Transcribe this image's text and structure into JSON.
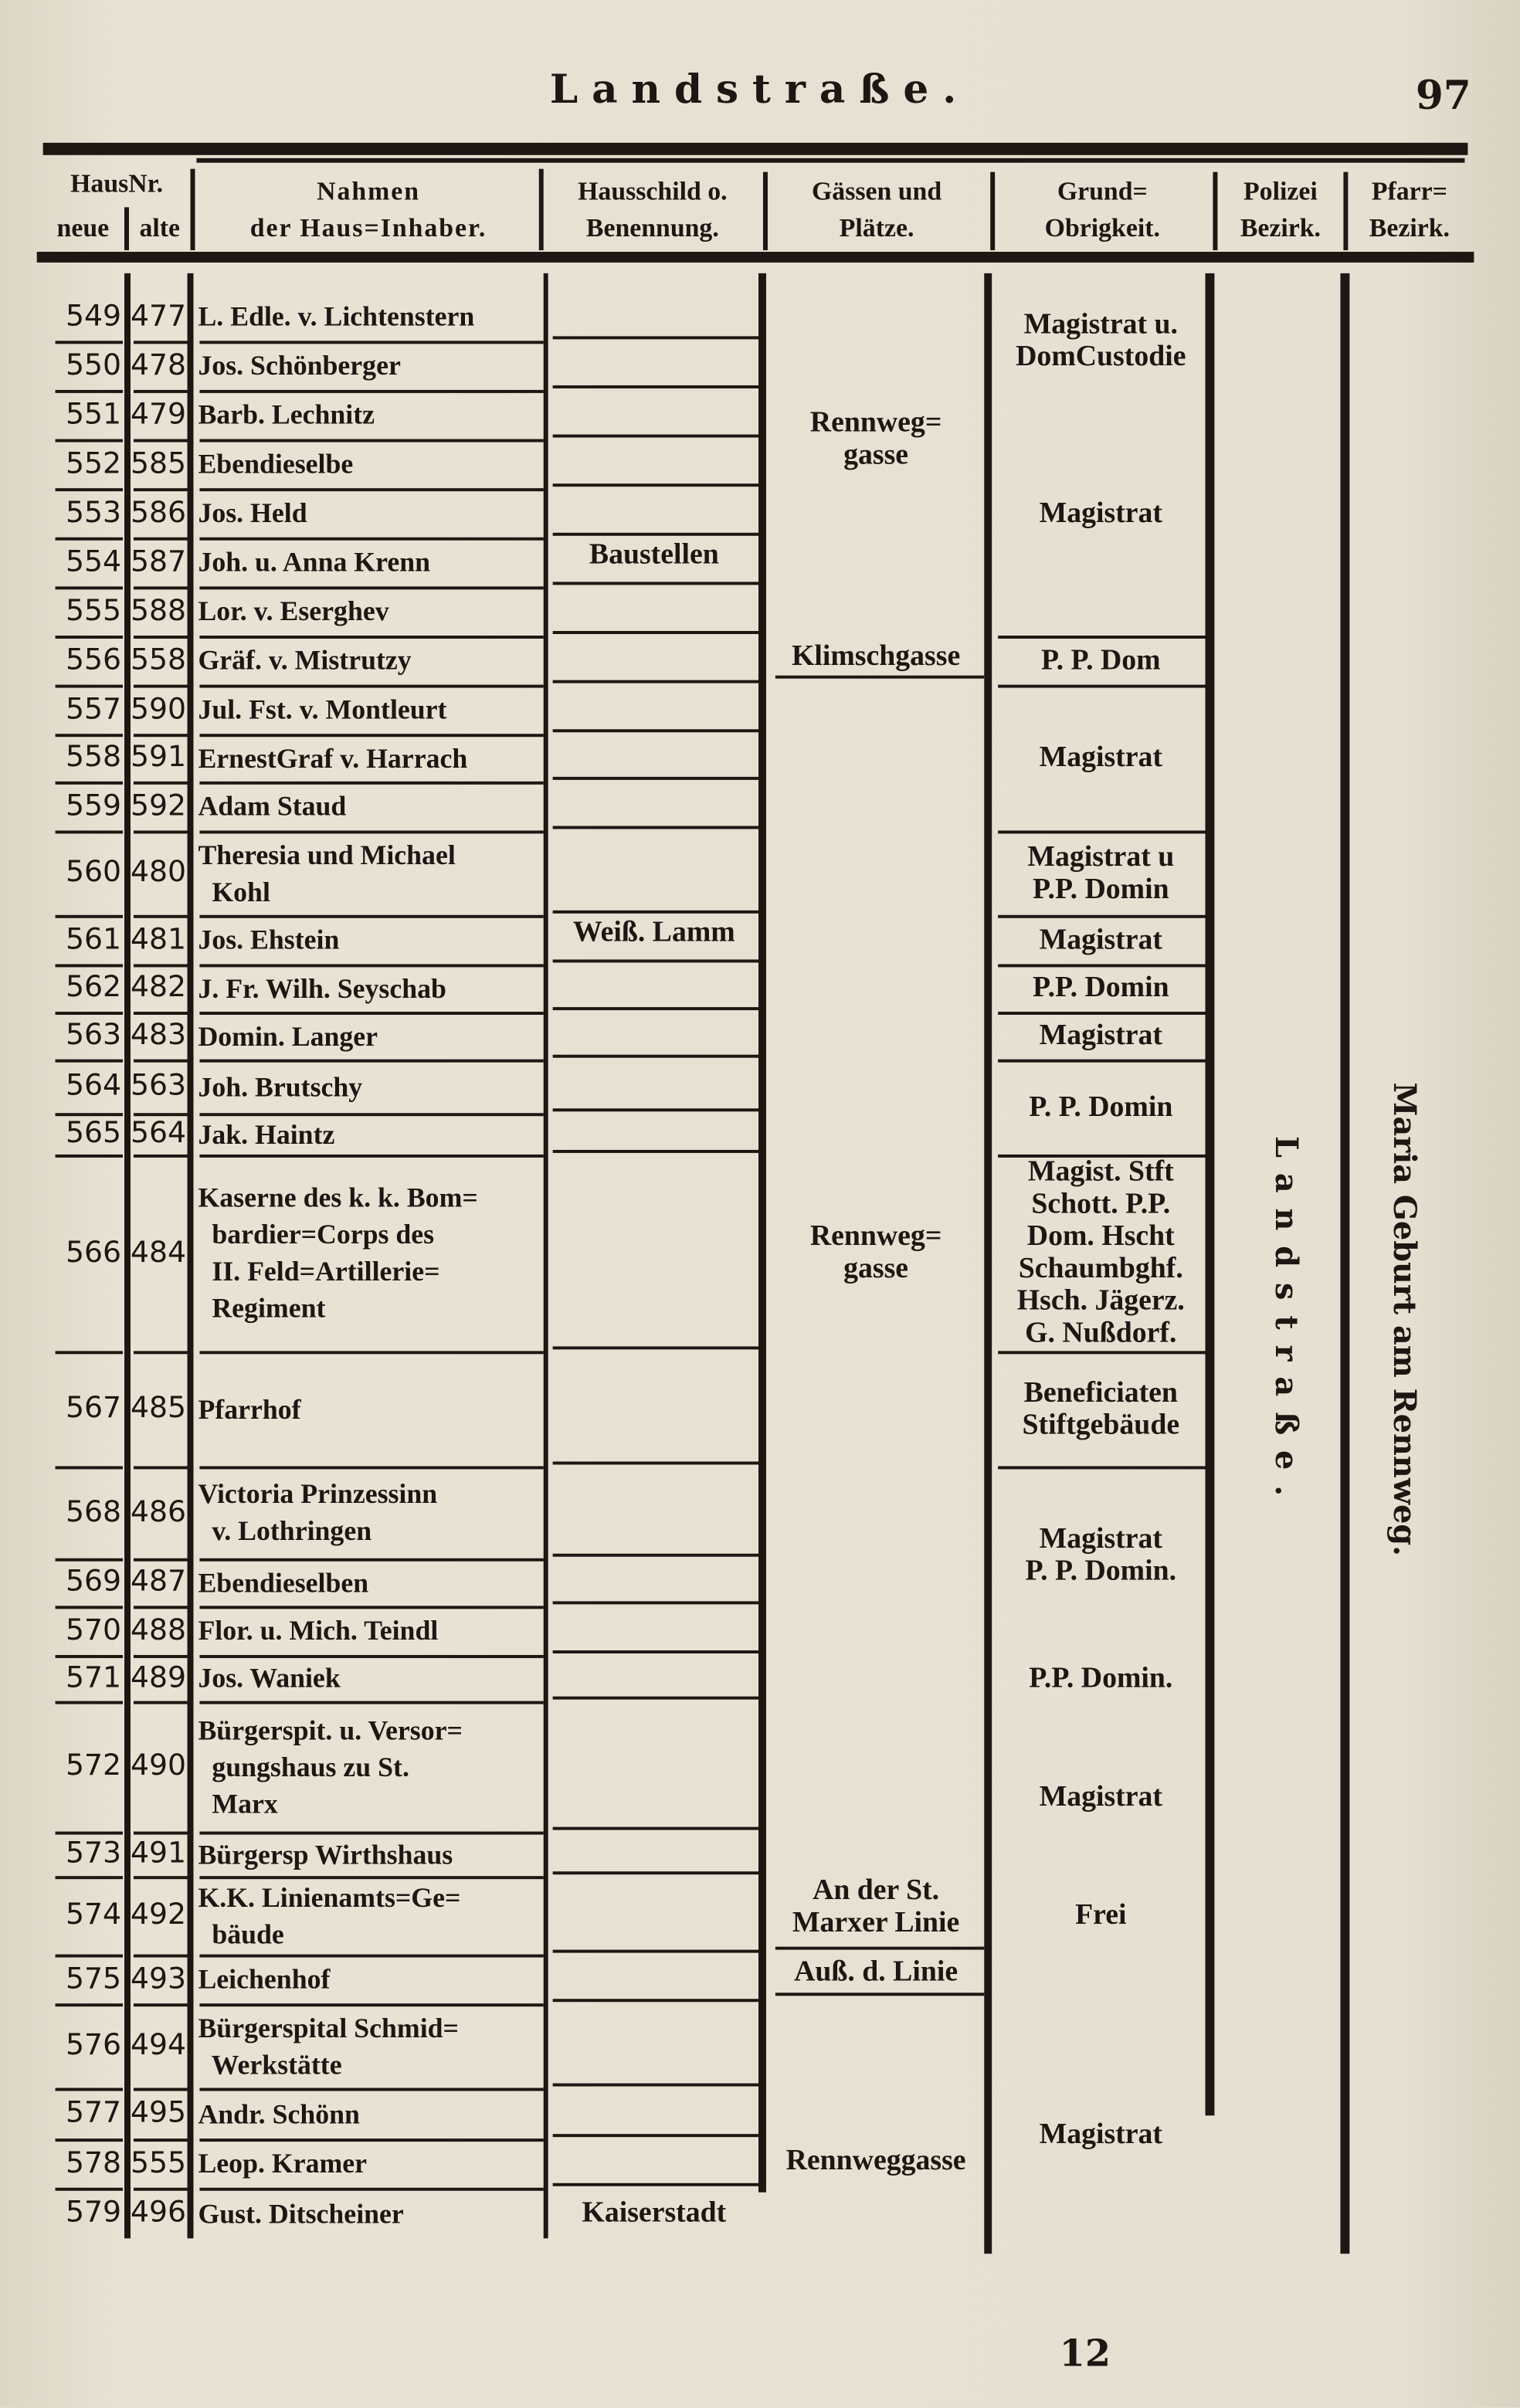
{
  "header": {
    "title": "Landstraße.",
    "page_number": "97"
  },
  "columns": {
    "haus_nr": "HausNr.",
    "neue": "neue",
    "alte": "alte",
    "owner": "Nahmen\nder Haus=Inhaber.",
    "sign": "Hausschild o.\nBenennung.",
    "street": "Gässen und\nPlätze.",
    "landlord": "Grund=\nObrigkeit.",
    "police": "Polizei\nBezirk.",
    "parish": "Pfarr=\nBezirk."
  },
  "rows": [
    {
      "neue": "549",
      "alte": "477",
      "owner": "L. Edle. v. Lichtenstern"
    },
    {
      "neue": "550",
      "alte": "478",
      "owner": "Jos. Schönberger"
    },
    {
      "neue": "551",
      "alte": "479",
      "owner": "Barb. Lechnitz"
    },
    {
      "neue": "552",
      "alte": "585",
      "owner": "Ebendieselbe"
    },
    {
      "neue": "553",
      "alte": "586",
      "owner": "Jos. Held"
    },
    {
      "neue": "554",
      "alte": "587",
      "owner": "Joh. u. Anna Krenn"
    },
    {
      "neue": "555",
      "alte": "588",
      "owner": "Lor. v. Eserghev"
    },
    {
      "neue": "556",
      "alte": "558",
      "owner": "Gräf. v. Mistrutzy"
    },
    {
      "neue": "557",
      "alte": "590",
      "owner": "Jul. Fst. v. Montleurt"
    },
    {
      "neue": "558",
      "alte": "591",
      "owner": "ErnestGraf v. Harrach"
    },
    {
      "neue": "559",
      "alte": "592",
      "owner": "Adam Staud"
    },
    {
      "neue": "560",
      "alte": "480",
      "owner": "Theresia und Michael\n  Kohl"
    },
    {
      "neue": "561",
      "alte": "481",
      "owner": "Jos. Ehstein"
    },
    {
      "neue": "562",
      "alte": "482",
      "owner": "J. Fr. Wilh. Seyschab"
    },
    {
      "neue": "563",
      "alte": "483",
      "owner": "Domin. Langer"
    },
    {
      "neue": "564",
      "alte": "563",
      "owner": "Joh. Brutschy"
    },
    {
      "neue": "565",
      "alte": "564",
      "owner": "Jak. Haintz"
    },
    {
      "neue": "566",
      "alte": "484",
      "owner": "Kaserne des k. k. Bom=\n  bardier=Corps des\n  II. Feld=Artillerie=\n  Regiment"
    },
    {
      "neue": "567",
      "alte": "485",
      "owner": "Pfarrhof"
    },
    {
      "neue": "568",
      "alte": "486",
      "owner": "Victoria Prinzessinn\n  v. Lothringen"
    },
    {
      "neue": "569",
      "alte": "487",
      "owner": "Ebendieselben"
    },
    {
      "neue": "570",
      "alte": "488",
      "owner": "Flor. u. Mich. Teindl"
    },
    {
      "neue": "571",
      "alte": "489",
      "owner": "Jos. Waniek"
    },
    {
      "neue": "572",
      "alte": "490",
      "owner": "Bürgerspit. u. Versor=\n  gungshaus zu St.\n  Marx"
    },
    {
      "neue": "573",
      "alte": "491",
      "owner": "Bürgersp Wirthshaus"
    },
    {
      "neue": "574",
      "alte": "492",
      "owner": "K.K. Linienamts=Ge=\n  bäude"
    },
    {
      "neue": "575",
      "alte": "493",
      "owner": "Leichenhof"
    },
    {
      "neue": "576",
      "alte": "494",
      "owner": "Bürgerspital Schmid=\n  Werkstätte"
    },
    {
      "neue": "577",
      "alte": "495",
      "owner": "Andr. Schönn"
    },
    {
      "neue": "578",
      "alte": "555",
      "owner": "Leop. Kramer"
    },
    {
      "neue": "579",
      "alte": "496",
      "owner": "Gust. Ditscheiner"
    }
  ],
  "signs": [
    "Baustellen",
    "Weiß. Lamm",
    "Kaiserstadt"
  ],
  "streets": [
    "Rennweg=\ngasse",
    "Klimschgasse",
    "Rennweg=\ngasse",
    "An der St.\nMarxer Linie",
    "Auß. d. Linie",
    "Rennweggasse"
  ],
  "landlords": [
    "Magistrat u.\nDomCustodie",
    "Magistrat",
    "P. P. Dom",
    "Magistrat",
    "Magistrat u\nP.P. Domin",
    "Magistrat",
    "P.P. Domin",
    "Magistrat",
    "P. P. Domin",
    "Magist. Stft\nSchott. P.P.\nDom. Hscht\nSchaumbghf.\nHsch. Jägerz.\nG. Nußdorf.",
    "Beneficiaten\nStiftgebäude",
    "Magistrat\nP. P. Domin.",
    "P.P. Domin.",
    "Magistrat",
    "Frei",
    "Magistrat"
  ],
  "police_district": "Landstraße.",
  "parish_district": "Maria Geburt am Rennweg.",
  "signature_mark": "12"
}
